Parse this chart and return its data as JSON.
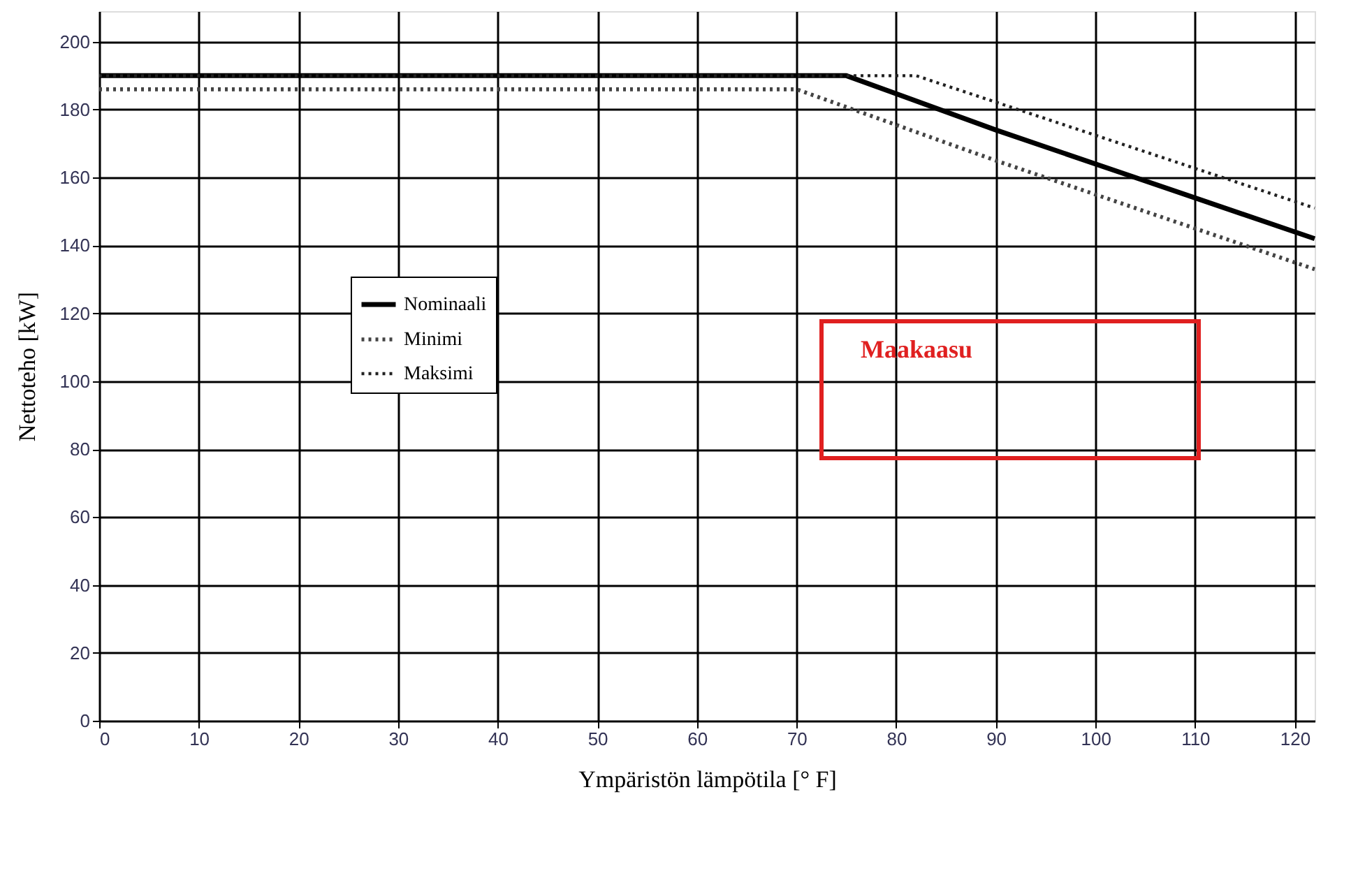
{
  "chart_data": {
    "type": "line",
    "xlabel": "Ympäristön lämpötila [° F]",
    "ylabel": "Nettoteho [kW]",
    "series": [
      {
        "name": "Nominaali",
        "color": "#000000",
        "line_style": "solid",
        "x": [
          0,
          75,
          90,
          110,
          122
        ],
        "values": [
          190,
          190,
          174,
          154,
          142
        ]
      },
      {
        "name": "Minimi",
        "color": "#444444",
        "line_style": "dotted",
        "x": [
          0,
          70,
          90,
          122
        ],
        "values": [
          186,
          186,
          165,
          133
        ]
      },
      {
        "name": "Maksimi",
        "color": "#222222",
        "line_style": "dotted",
        "x": [
          0,
          82,
          122
        ],
        "values": [
          190,
          190,
          151
        ]
      }
    ],
    "xlim": [
      0,
      122
    ],
    "xticks": [
      0,
      10,
      20,
      30,
      40,
      50,
      60,
      70,
      80,
      90,
      100,
      110,
      120
    ],
    "ylim": [
      0,
      209
    ],
    "yticks": [
      0,
      20,
      40,
      60,
      80,
      100,
      120,
      140,
      160,
      180,
      200
    ],
    "grid": true,
    "legend": "left",
    "marker": "none",
    "annotations": [
      "Maakaasu"
    ]
  }
}
